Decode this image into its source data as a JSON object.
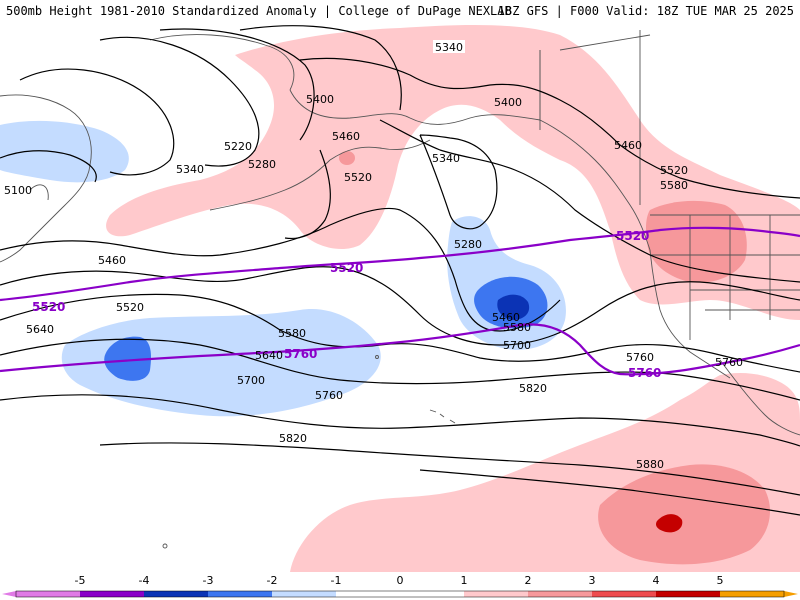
{
  "header": {
    "title": "500mb Height 1981-2010 Standardized Anomaly | College of DuPage NEXLAB",
    "run": "18Z GFS | F000 Valid: 18Z TUE MAR 25 2025"
  },
  "colors": {
    "neg5": "#e07be6",
    "neg4": "#8a00c8",
    "neg3": "#0b33b5",
    "neg2": "#3d76f0",
    "neg1": "#c4dcff",
    "pos1": "#ffc9cc",
    "pos2": "#f6989b",
    "pos3": "#ee4c4f",
    "pos4": "#c40000",
    "pos5": "#f59e00",
    "purple": "#8a00c8",
    "land_line": "#555555"
  },
  "colorbar": {
    "ticks": [
      "-5",
      "-4",
      "-3",
      "-2",
      "-1",
      "0",
      "1",
      "2",
      "3",
      "4",
      "5"
    ]
  },
  "height_labels": [
    "5340",
    "5400",
    "5220",
    "5280",
    "5340",
    "5100",
    "5460",
    "5520",
    "5340",
    "5400",
    "5460",
    "5520",
    "5580",
    "5280",
    "5460",
    "5520",
    "5580",
    "5640",
    "5700",
    "5760",
    "5820",
    "5880",
    "5640",
    "5580",
    "5700",
    "5760",
    "5760",
    "5820"
  ],
  "purple_labels": [
    "5520",
    "5520",
    "5520",
    "5760",
    "5760"
  ]
}
